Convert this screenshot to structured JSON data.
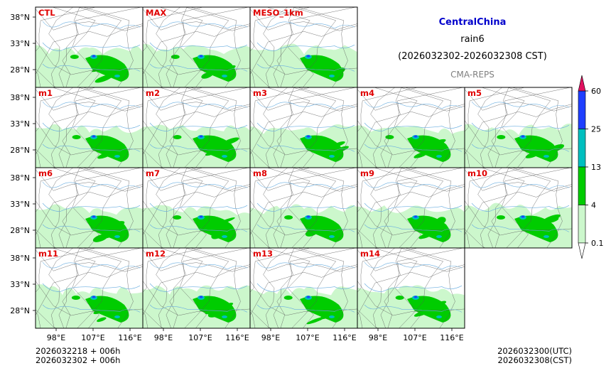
{
  "header": {
    "region": "CentralChina",
    "variable": "rain6",
    "period": "(2026032302-2026032308 CST)",
    "system": "CMA-REPS"
  },
  "panels": [
    {
      "label": "CTL"
    },
    {
      "label": "MAX"
    },
    {
      "label": "MESO_1km"
    },
    {
      "label": "m1"
    },
    {
      "label": "m2"
    },
    {
      "label": "m3"
    },
    {
      "label": "m4"
    },
    {
      "label": "m5"
    },
    {
      "label": "m6"
    },
    {
      "label": "m7"
    },
    {
      "label": "m8"
    },
    {
      "label": "m9"
    },
    {
      "label": "m10"
    },
    {
      "label": "m11"
    },
    {
      "label": "m12"
    },
    {
      "label": "m13"
    },
    {
      "label": "m14"
    }
  ],
  "axes": {
    "lat_ticks": [
      "38°N",
      "33°N",
      "28°N"
    ],
    "lon_ticks": [
      "98°E",
      "107°E",
      "116°E"
    ]
  },
  "colorbar": {
    "levels": [
      "0.1",
      "4",
      "13",
      "25",
      "60"
    ],
    "colors": [
      "#ccf7cc",
      "#00cc00",
      "#00bfbf",
      "#1f3fff",
      "#e0115f"
    ]
  },
  "footer": {
    "init_utc": "2026032218  +  006h",
    "init_cst": "2026032302  +  006h",
    "valid_utc": "2026032300(UTC)",
    "valid_cst": "2026032308(CST)"
  }
}
